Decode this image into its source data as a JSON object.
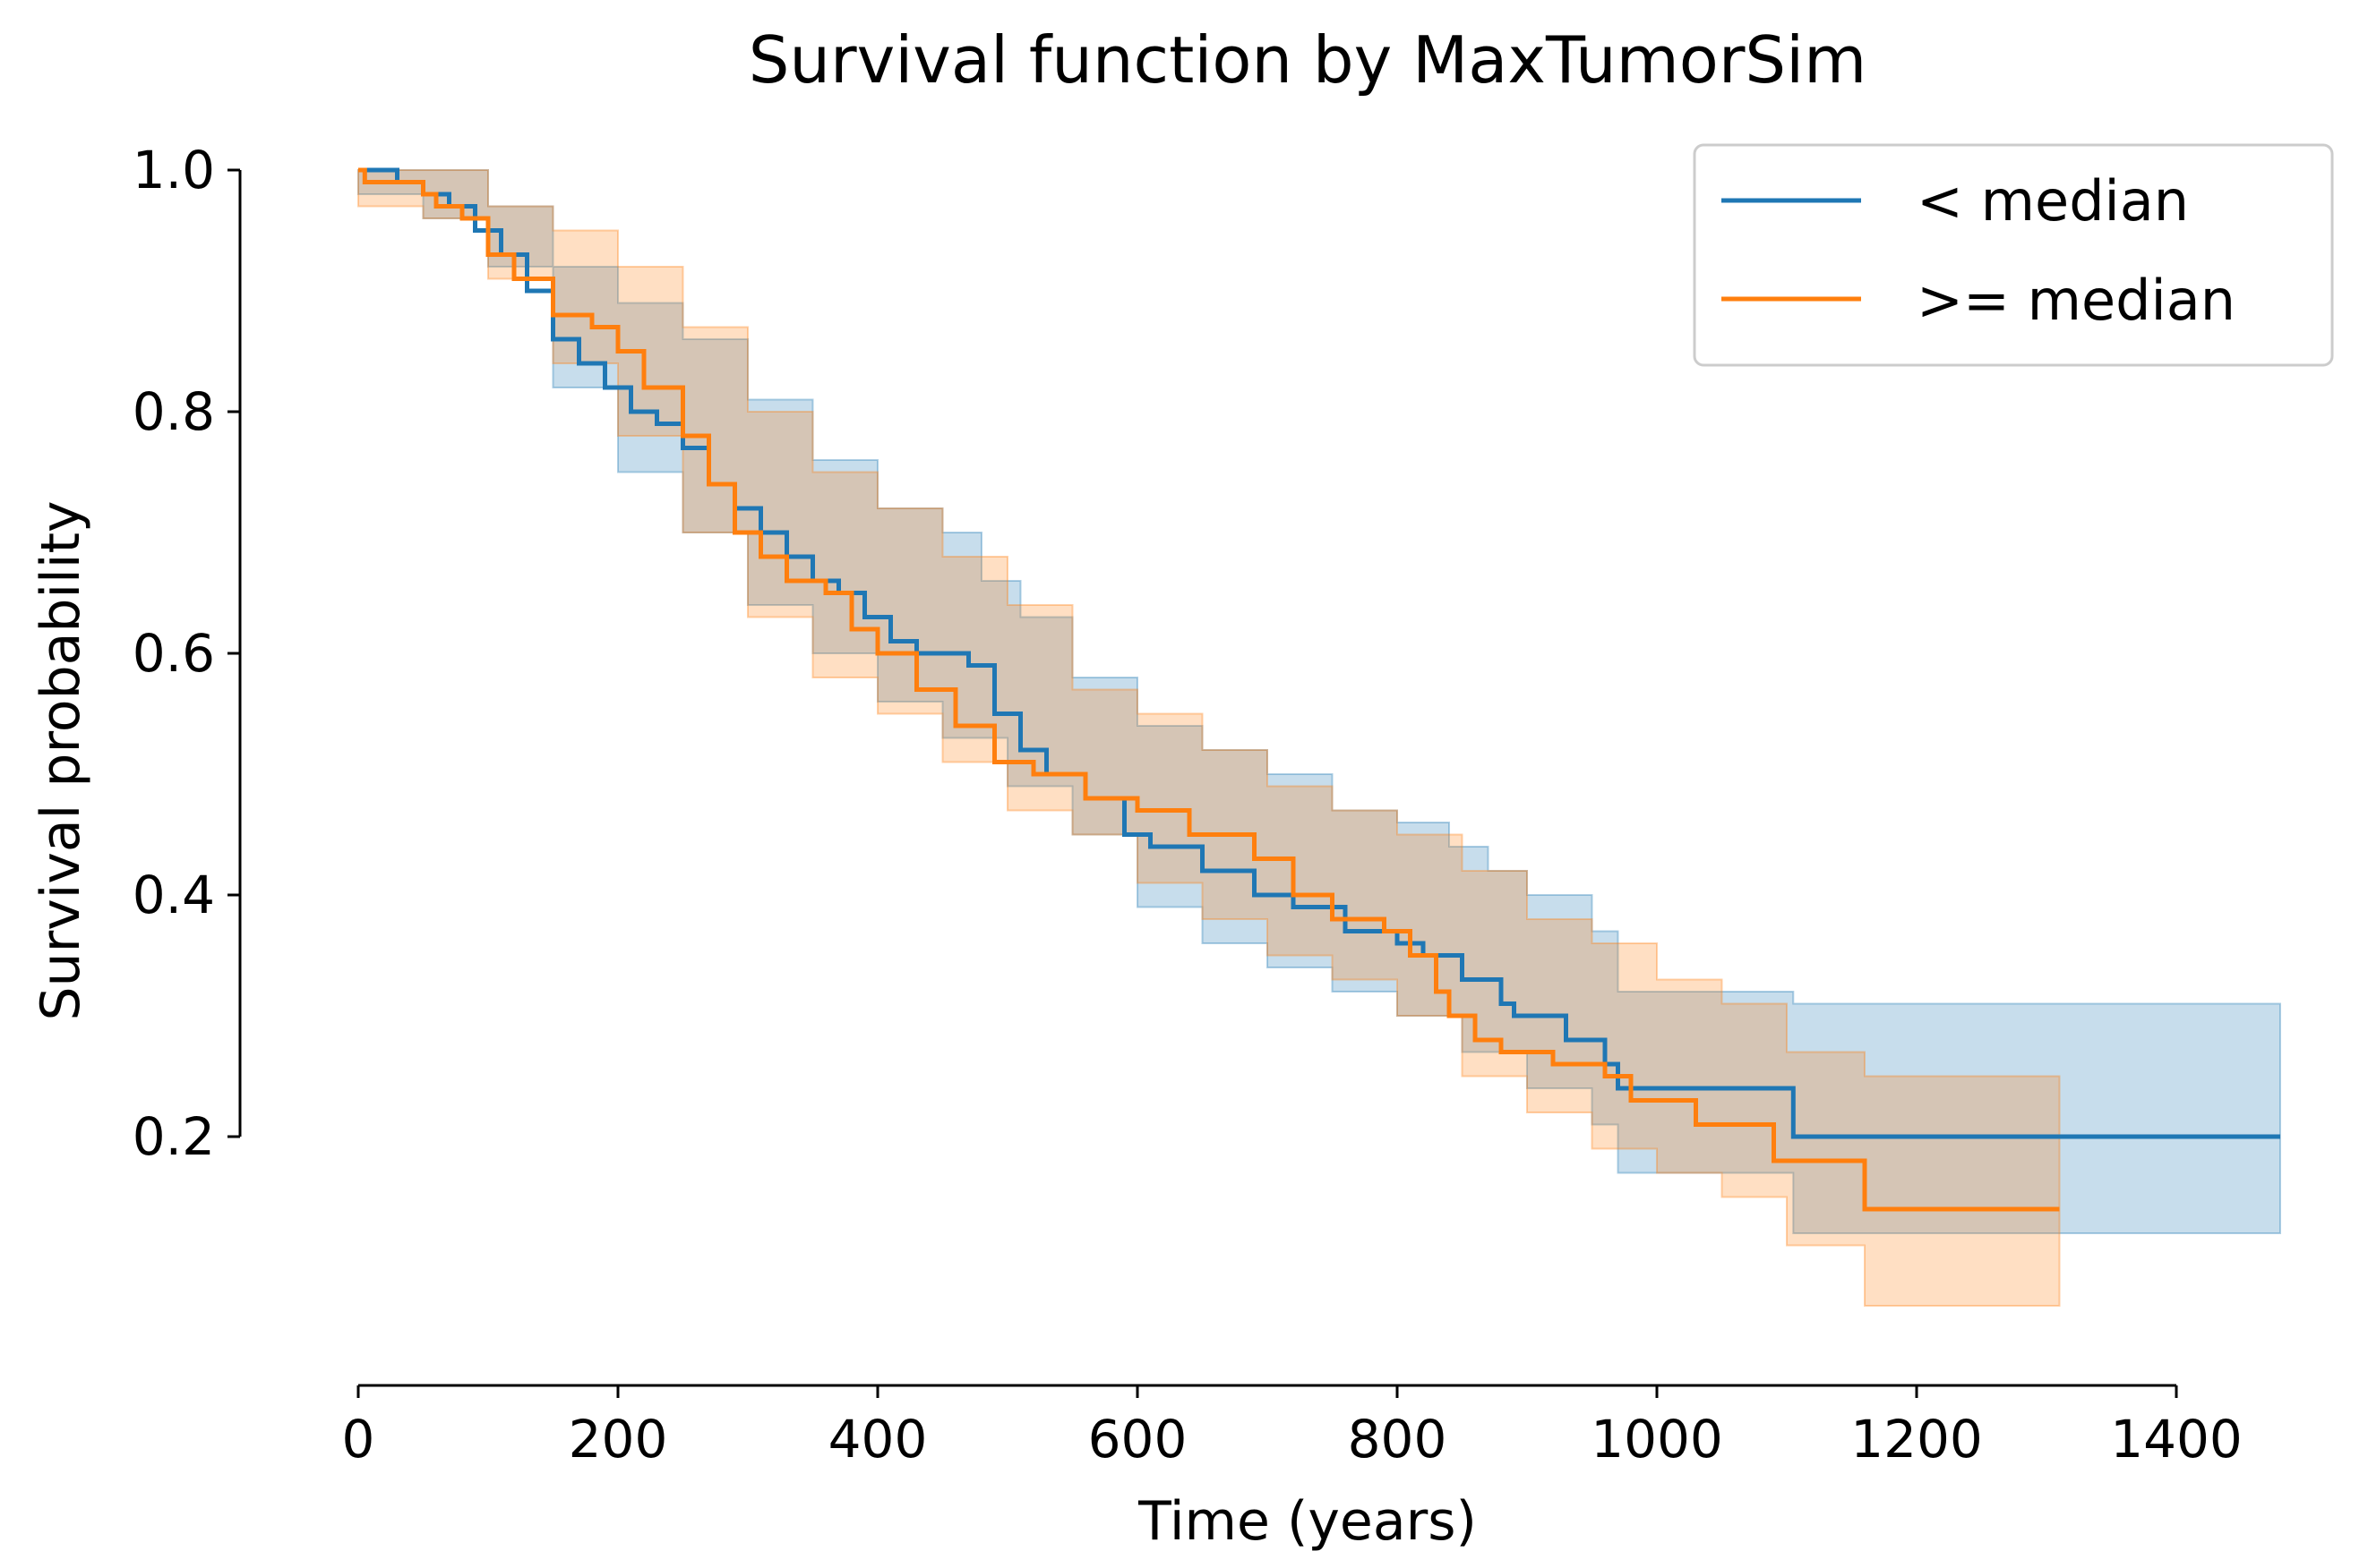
{
  "chart_data": {
    "type": "line",
    "title": "Survival function by MaxTumorSim",
    "xlabel": "Time (years)",
    "ylabel": "Survival probability",
    "xlim": [
      0,
      1400
    ],
    "ylim": [
      0,
      1.0
    ],
    "x_ticks": [
      0,
      200,
      400,
      600,
      800,
      1000,
      1200,
      1400
    ],
    "x_tick_labels": [
      "0",
      "200",
      "400",
      "600",
      "800",
      "1000",
      "1200",
      "1400"
    ],
    "y_ticks": [
      0.2,
      0.4,
      0.6,
      0.8,
      1.0
    ],
    "y_tick_labels": [
      "0.2",
      "0.4",
      "0.6",
      "0.8",
      "1.0"
    ],
    "grid": false,
    "legend_position": "top-right",
    "series": [
      {
        "name": "< median",
        "color": "#1f77b4",
        "style": "step",
        "points": [
          [
            0,
            1.0
          ],
          [
            30,
            0.99
          ],
          [
            50,
            0.98
          ],
          [
            70,
            0.97
          ],
          [
            90,
            0.95
          ],
          [
            110,
            0.93
          ],
          [
            130,
            0.9
          ],
          [
            150,
            0.86
          ],
          [
            170,
            0.84
          ],
          [
            190,
            0.82
          ],
          [
            210,
            0.8
          ],
          [
            230,
            0.79
          ],
          [
            250,
            0.77
          ],
          [
            270,
            0.74
          ],
          [
            290,
            0.72
          ],
          [
            310,
            0.7
          ],
          [
            330,
            0.68
          ],
          [
            350,
            0.66
          ],
          [
            370,
            0.65
          ],
          [
            390,
            0.63
          ],
          [
            410,
            0.61
          ],
          [
            430,
            0.6
          ],
          [
            470,
            0.59
          ],
          [
            490,
            0.55
          ],
          [
            510,
            0.52
          ],
          [
            530,
            0.5
          ],
          [
            560,
            0.48
          ],
          [
            590,
            0.45
          ],
          [
            610,
            0.44
          ],
          [
            650,
            0.42
          ],
          [
            690,
            0.4
          ],
          [
            720,
            0.39
          ],
          [
            760,
            0.37
          ],
          [
            800,
            0.36
          ],
          [
            820,
            0.35
          ],
          [
            850,
            0.33
          ],
          [
            880,
            0.31
          ],
          [
            890,
            0.3
          ],
          [
            930,
            0.28
          ],
          [
            960,
            0.26
          ],
          [
            970,
            0.24
          ],
          [
            1105,
            0.2
          ],
          [
            1480,
            0.2
          ]
        ],
        "ci_upper": [
          [
            0,
            1.0
          ],
          [
            50,
            1.0
          ],
          [
            100,
            0.97
          ],
          [
            150,
            0.92
          ],
          [
            200,
            0.89
          ],
          [
            250,
            0.86
          ],
          [
            300,
            0.81
          ],
          [
            350,
            0.76
          ],
          [
            400,
            0.72
          ],
          [
            450,
            0.7
          ],
          [
            480,
            0.66
          ],
          [
            510,
            0.63
          ],
          [
            550,
            0.58
          ],
          [
            600,
            0.54
          ],
          [
            650,
            0.52
          ],
          [
            700,
            0.5
          ],
          [
            750,
            0.47
          ],
          [
            800,
            0.46
          ],
          [
            840,
            0.44
          ],
          [
            870,
            0.42
          ],
          [
            900,
            0.4
          ],
          [
            950,
            0.37
          ],
          [
            970,
            0.32
          ],
          [
            1105,
            0.31
          ],
          [
            1480,
            0.31
          ]
        ],
        "ci_lower": [
          [
            0,
            0.98
          ],
          [
            50,
            0.96
          ],
          [
            100,
            0.92
          ],
          [
            150,
            0.82
          ],
          [
            200,
            0.75
          ],
          [
            250,
            0.7
          ],
          [
            300,
            0.64
          ],
          [
            350,
            0.6
          ],
          [
            400,
            0.56
          ],
          [
            450,
            0.53
          ],
          [
            500,
            0.49
          ],
          [
            550,
            0.45
          ],
          [
            600,
            0.39
          ],
          [
            650,
            0.36
          ],
          [
            700,
            0.34
          ],
          [
            750,
            0.32
          ],
          [
            800,
            0.3
          ],
          [
            850,
            0.27
          ],
          [
            900,
            0.24
          ],
          [
            950,
            0.21
          ],
          [
            970,
            0.17
          ],
          [
            1050,
            0.17
          ],
          [
            1105,
            0.12
          ],
          [
            1480,
            0.12
          ]
        ]
      },
      {
        "name": ">= median",
        "color": "#ff7f0e",
        "style": "step",
        "points": [
          [
            0,
            1.0
          ],
          [
            5,
            0.99
          ],
          [
            50,
            0.98
          ],
          [
            60,
            0.97
          ],
          [
            80,
            0.96
          ],
          [
            100,
            0.93
          ],
          [
            120,
            0.91
          ],
          [
            150,
            0.88
          ],
          [
            180,
            0.87
          ],
          [
            200,
            0.85
          ],
          [
            220,
            0.82
          ],
          [
            250,
            0.78
          ],
          [
            270,
            0.74
          ],
          [
            290,
            0.7
          ],
          [
            310,
            0.68
          ],
          [
            330,
            0.66
          ],
          [
            360,
            0.65
          ],
          [
            380,
            0.62
          ],
          [
            400,
            0.6
          ],
          [
            430,
            0.57
          ],
          [
            460,
            0.54
          ],
          [
            490,
            0.51
          ],
          [
            520,
            0.5
          ],
          [
            560,
            0.48
          ],
          [
            600,
            0.47
          ],
          [
            640,
            0.45
          ],
          [
            690,
            0.43
          ],
          [
            720,
            0.4
          ],
          [
            750,
            0.38
          ],
          [
            790,
            0.37
          ],
          [
            810,
            0.35
          ],
          [
            830,
            0.32
          ],
          [
            840,
            0.3
          ],
          [
            860,
            0.28
          ],
          [
            880,
            0.27
          ],
          [
            920,
            0.26
          ],
          [
            960,
            0.25
          ],
          [
            980,
            0.23
          ],
          [
            1030,
            0.21
          ],
          [
            1090,
            0.18
          ],
          [
            1160,
            0.14
          ],
          [
            1310,
            0.14
          ]
        ],
        "ci_upper": [
          [
            0,
            1.0
          ],
          [
            50,
            1.0
          ],
          [
            100,
            0.97
          ],
          [
            150,
            0.95
          ],
          [
            200,
            0.92
          ],
          [
            250,
            0.87
          ],
          [
            300,
            0.8
          ],
          [
            350,
            0.75
          ],
          [
            400,
            0.72
          ],
          [
            450,
            0.68
          ],
          [
            500,
            0.64
          ],
          [
            550,
            0.57
          ],
          [
            600,
            0.55
          ],
          [
            650,
            0.52
          ],
          [
            700,
            0.49
          ],
          [
            750,
            0.47
          ],
          [
            800,
            0.45
          ],
          [
            850,
            0.42
          ],
          [
            900,
            0.38
          ],
          [
            950,
            0.36
          ],
          [
            1000,
            0.33
          ],
          [
            1050,
            0.31
          ],
          [
            1100,
            0.27
          ],
          [
            1160,
            0.25
          ],
          [
            1310,
            0.25
          ]
        ],
        "ci_lower": [
          [
            0,
            0.97
          ],
          [
            50,
            0.96
          ],
          [
            100,
            0.91
          ],
          [
            150,
            0.84
          ],
          [
            200,
            0.78
          ],
          [
            250,
            0.7
          ],
          [
            300,
            0.63
          ],
          [
            350,
            0.58
          ],
          [
            400,
            0.55
          ],
          [
            450,
            0.51
          ],
          [
            500,
            0.47
          ],
          [
            550,
            0.45
          ],
          [
            600,
            0.41
          ],
          [
            650,
            0.38
          ],
          [
            700,
            0.35
          ],
          [
            750,
            0.33
          ],
          [
            800,
            0.3
          ],
          [
            850,
            0.25
          ],
          [
            900,
            0.22
          ],
          [
            950,
            0.19
          ],
          [
            1000,
            0.17
          ],
          [
            1050,
            0.15
          ],
          [
            1100,
            0.11
          ],
          [
            1160,
            0.06
          ],
          [
            1310,
            0.06
          ]
        ]
      }
    ]
  }
}
